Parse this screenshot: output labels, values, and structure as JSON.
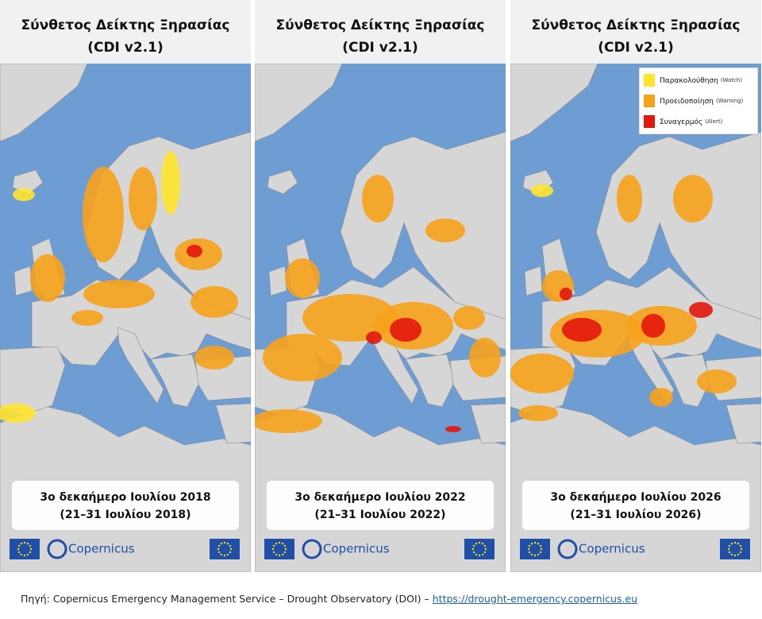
{
  "panels": [
    {
      "title": "Σύνθετος Δείκτης Ξηρασίας",
      "subtitle": "(CDI v2.1)",
      "period": "3ο δεκαήμερο Ιουλίου 2018",
      "dates": "(21–31 Ιουλίου 2018)",
      "logo": "Copernicus"
    },
    {
      "title": "Σύνθετος Δείκτης Ξηρασίας",
      "subtitle": "(CDI v2.1)",
      "period": "3ο δεκαήμερο Ιουλίου 2022",
      "dates": "(21–31 Ιουλίου 2022)",
      "logo": "Copernicus"
    },
    {
      "title": "Σύνθετος Δείκτης Ξηρασίας",
      "subtitle": "(CDI v2.1)",
      "period": "3ο δεκαήμερο Ιουλίου 2026",
      "dates": "(21–31 Ιουλίου 2026)",
      "logo": "Copernicus"
    }
  ],
  "legend": [
    {
      "label": "Παρακολούθηση",
      "note": "(Watch)",
      "color": "#ffe52e"
    },
    {
      "label": "Προειδοποίηση",
      "note": "(Warning)",
      "color": "#f7a21b"
    },
    {
      "label": "Συναγερμός",
      "note": "(Alert)",
      "color": "#e3170d"
    }
  ],
  "footer": {
    "source": "Πηγή: Copernicus Emergency Management Service – Drought Observatory (DOI) –",
    "link": "https://drought-emergency.copernicus.eu"
  }
}
